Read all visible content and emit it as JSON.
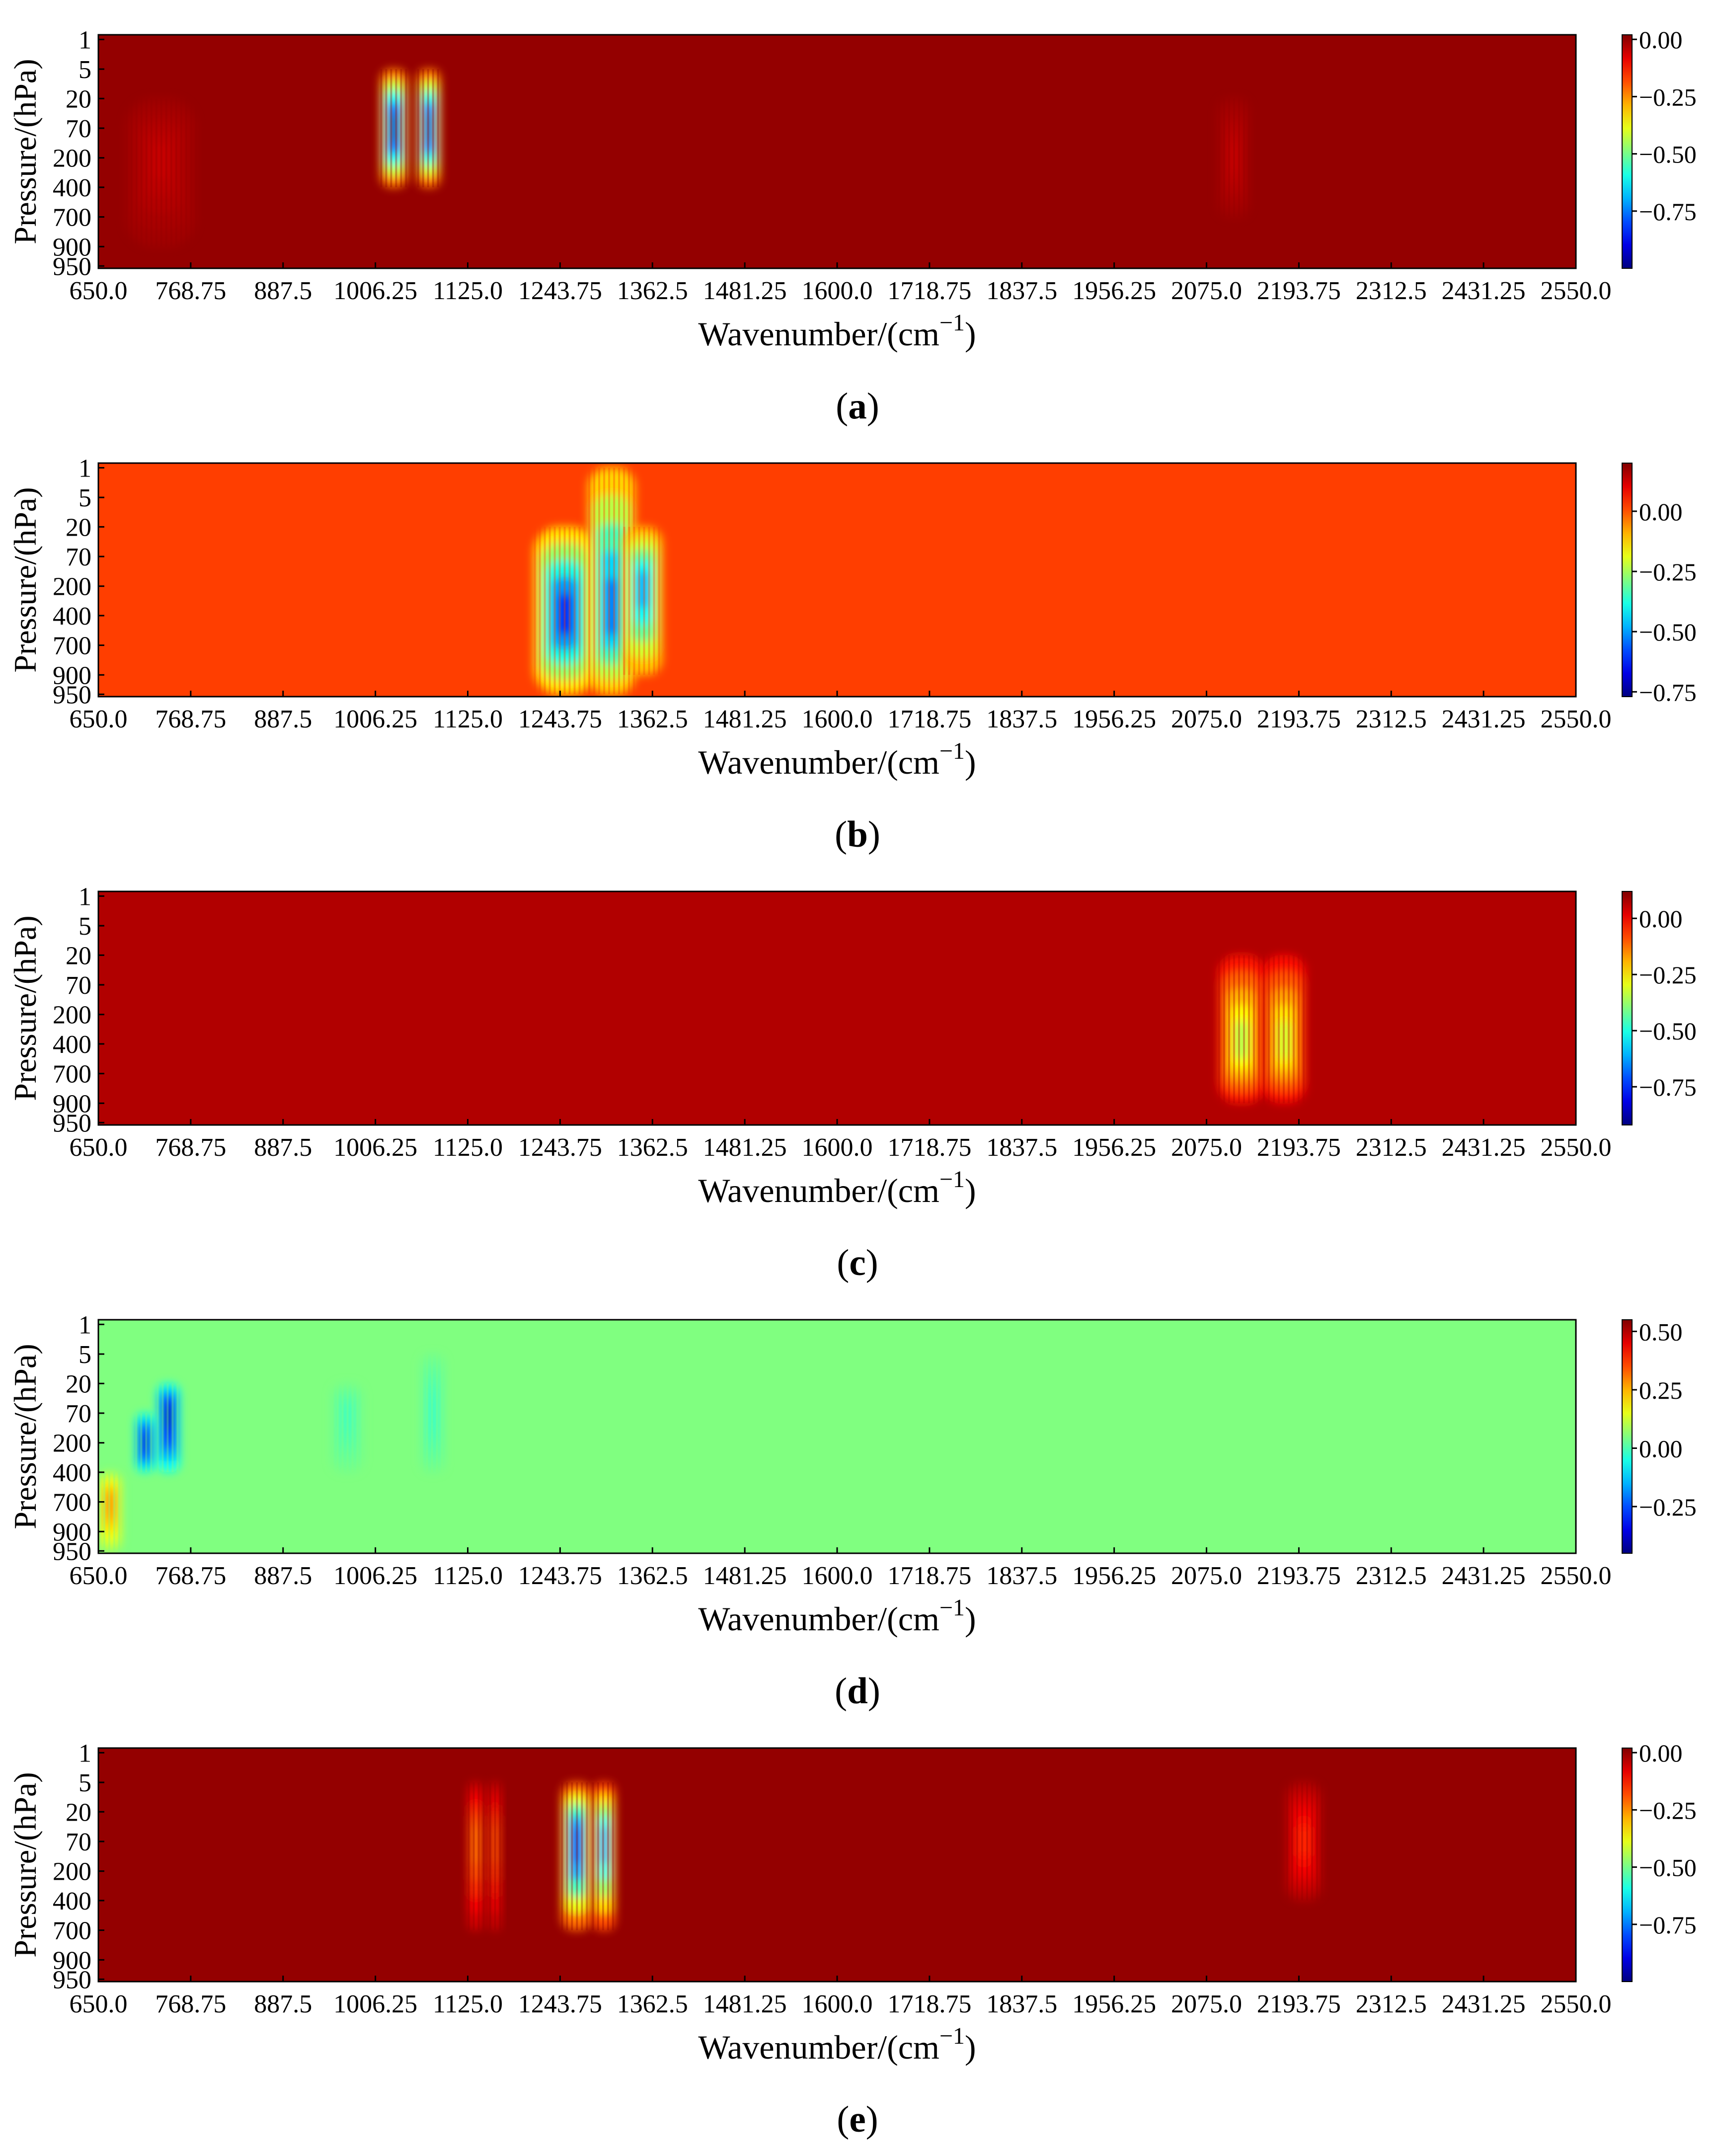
{
  "chart_data": [
    {
      "type": "heatmap",
      "panel_label": "a",
      "xlabel": "Wavenumber/(cm",
      "xlabel_sup": "−1",
      "xlabel_close": ")",
      "ylabel": "Pressure/(hPa)",
      "x_ticks": [
        "650.0",
        "768.75",
        "887.5",
        "1006.25",
        "1125.0",
        "1243.75",
        "1362.5",
        "1481.25",
        "1600.0",
        "1718.75",
        "1837.5",
        "1956.25",
        "2075.0",
        "2193.75",
        "2312.5",
        "2431.25",
        "2550.0"
      ],
      "y_ticks": [
        "1",
        "5",
        "20",
        "70",
        "200",
        "400",
        "700",
        "900",
        "950"
      ],
      "xlim": [
        650.0,
        2550.0
      ],
      "colorbar": {
        "vmin": -1.0,
        "vmax": 0.02,
        "ticks": [
          0.0,
          -0.25,
          -0.5,
          -0.75
        ],
        "tick_labels": [
          "0.00",
          "−0.25",
          "−0.50",
          "−0.75"
        ]
      },
      "background_value": 0.0,
      "features": [
        {
          "x_center": 1030,
          "x_width": 35,
          "y_center": 70,
          "y_extent": [
            5,
            400
          ],
          "min_value": -0.97
        },
        {
          "x_center": 1075,
          "x_width": 30,
          "y_center": 70,
          "y_extent": [
            5,
            400
          ],
          "min_value": -0.95
        },
        {
          "x_center": 730,
          "x_width": 90,
          "y_center": 200,
          "y_extent": [
            20,
            900
          ],
          "min_value": -0.05
        },
        {
          "x_center": 2110,
          "x_width": 40,
          "y_center": 200,
          "y_extent": [
            20,
            700
          ],
          "min_value": -0.05
        }
      ]
    },
    {
      "type": "heatmap",
      "panel_label": "b",
      "xlabel": "Wavenumber/(cm",
      "xlabel_sup": "−1",
      "xlabel_close": ")",
      "ylabel": "Pressure/(hPa)",
      "x_ticks": [
        "650.0",
        "768.75",
        "887.5",
        "1006.25",
        "1125.0",
        "1243.75",
        "1362.5",
        "1481.25",
        "1600.0",
        "1718.75",
        "1837.5",
        "1956.25",
        "2075.0",
        "2193.75",
        "2312.5",
        "2431.25",
        "2550.0"
      ],
      "y_ticks": [
        "1",
        "5",
        "20",
        "70",
        "200",
        "400",
        "700",
        "900",
        "950"
      ],
      "xlim": [
        650.0,
        2550.0
      ],
      "colorbar": {
        "vmin": -0.77,
        "vmax": 0.2,
        "ticks": [
          0.0,
          -0.25,
          -0.5,
          -0.75
        ],
        "tick_labels": [
          "0.00",
          "−0.25",
          "−0.50",
          "−0.75"
        ]
      },
      "background_value": 0.02,
      "features": [
        {
          "x_center": 1250,
          "x_width": 80,
          "y_center": 400,
          "y_extent": [
            20,
            950
          ],
          "min_value": -0.62
        },
        {
          "x_center": 1310,
          "x_width": 60,
          "y_center": 400,
          "y_extent": [
            1,
            950
          ],
          "min_value": -0.55
        },
        {
          "x_center": 1350,
          "x_width": 50,
          "y_center": 200,
          "y_extent": [
            20,
            900
          ],
          "min_value": -0.5
        }
      ]
    },
    {
      "type": "heatmap",
      "panel_label": "c",
      "xlabel": "Wavenumber/(cm",
      "xlabel_sup": "−1",
      "xlabel_close": ")",
      "ylabel": "Pressure/(hPa)",
      "x_ticks": [
        "650.0",
        "768.75",
        "887.5",
        "1006.25",
        "1125.0",
        "1243.75",
        "1362.5",
        "1481.25",
        "1600.0",
        "1718.75",
        "1837.5",
        "1956.25",
        "2075.0",
        "2193.75",
        "2312.5",
        "2431.25",
        "2550.0"
      ],
      "y_ticks": [
        "1",
        "5",
        "20",
        "70",
        "200",
        "400",
        "700",
        "900",
        "950"
      ],
      "xlim": [
        650.0,
        2550.0
      ],
      "colorbar": {
        "vmin": -0.92,
        "vmax": 0.12,
        "ticks": [
          0.0,
          -0.25,
          -0.5,
          -0.75
        ],
        "tick_labels": [
          "0.00",
          "−0.25",
          "−0.50",
          "−0.75"
        ]
      },
      "background_value": 0.07,
      "features": [
        {
          "x_center": 2120,
          "x_width": 60,
          "y_center": 400,
          "y_extent": [
            20,
            900
          ],
          "min_value": -0.35
        },
        {
          "x_center": 2175,
          "x_width": 55,
          "y_center": 400,
          "y_extent": [
            20,
            900
          ],
          "min_value": -0.32
        }
      ]
    },
    {
      "type": "heatmap",
      "panel_label": "d",
      "xlabel": "Wavenumber/(cm",
      "xlabel_sup": "−1",
      "xlabel_close": ")",
      "ylabel": "Pressure/(hPa)",
      "x_ticks": [
        "650.0",
        "768.75",
        "887.5",
        "1006.25",
        "1125.0",
        "1243.75",
        "1362.5",
        "1481.25",
        "1600.0",
        "1718.75",
        "1837.5",
        "1956.25",
        "2075.0",
        "2193.75",
        "2312.5",
        "2431.25",
        "2550.0"
      ],
      "y_ticks": [
        "1",
        "5",
        "20",
        "70",
        "200",
        "400",
        "700",
        "900",
        "950"
      ],
      "xlim": [
        650.0,
        2550.0
      ],
      "colorbar": {
        "vmin": -0.45,
        "vmax": 0.55,
        "ticks": [
          0.5,
          0.25,
          0.0,
          -0.25
        ],
        "tick_labels": [
          "0.50",
          "0.25",
          "0.00",
          "−0.25"
        ]
      },
      "background_value": 0.05,
      "features": [
        {
          "x_center": 740,
          "x_width": 30,
          "y_center": 70,
          "y_extent": [
            20,
            400
          ],
          "min_value": -0.42
        },
        {
          "x_center": 710,
          "x_width": 25,
          "y_center": 200,
          "y_extent": [
            70,
            400
          ],
          "min_value": -0.4
        },
        {
          "x_center": 665,
          "x_width": 30,
          "y_center": 700,
          "y_extent": [
            400,
            950
          ],
          "max_value": 0.3
        },
        {
          "x_center": 1080,
          "x_width": 30,
          "y_center": 70,
          "y_extent": [
            5,
            400
          ],
          "min_value": -0.02
        },
        {
          "x_center": 970,
          "x_width": 40,
          "y_center": 70,
          "y_extent": [
            20,
            400
          ],
          "min_value": -0.01
        }
      ]
    },
    {
      "type": "heatmap",
      "panel_label": "e",
      "xlabel": "Wavenumber/(cm",
      "xlabel_sup": "−1",
      "xlabel_close": ")",
      "ylabel": "Pressure/(hPa)",
      "x_ticks": [
        "650.0",
        "768.75",
        "887.5",
        "1006.25",
        "1125.0",
        "1243.75",
        "1362.5",
        "1481.25",
        "1600.0",
        "1718.75",
        "1837.5",
        "1956.25",
        "2075.0",
        "2193.75",
        "2312.5",
        "2431.25",
        "2550.0"
      ],
      "y_ticks": [
        "1",
        "5",
        "20",
        "70",
        "200",
        "400",
        "700",
        "900",
        "950"
      ],
      "xlim": [
        650.0,
        2550.0
      ],
      "colorbar": {
        "vmin": -1.0,
        "vmax": 0.02,
        "ticks": [
          0.0,
          -0.25,
          -0.5,
          -0.75
        ],
        "tick_labels": [
          "0.00",
          "−0.25",
          "−0.50",
          "−0.75"
        ]
      },
      "background_value": 0.0,
      "features": [
        {
          "x_center": 1135,
          "x_width": 20,
          "y_center": 70,
          "y_extent": [
            5,
            700
          ],
          "min_value": -0.25
        },
        {
          "x_center": 1160,
          "x_width": 15,
          "y_center": 70,
          "y_extent": [
            5,
            700
          ],
          "min_value": -0.22
        },
        {
          "x_center": 1265,
          "x_width": 40,
          "y_center": 70,
          "y_extent": [
            5,
            700
          ],
          "min_value": -0.88
        },
        {
          "x_center": 1300,
          "x_width": 30,
          "y_center": 70,
          "y_extent": [
            5,
            700
          ],
          "min_value": -0.75
        },
        {
          "x_center": 2200,
          "x_width": 45,
          "y_center": 70,
          "y_extent": [
            5,
            400
          ],
          "min_value": -0.15
        }
      ]
    }
  ]
}
